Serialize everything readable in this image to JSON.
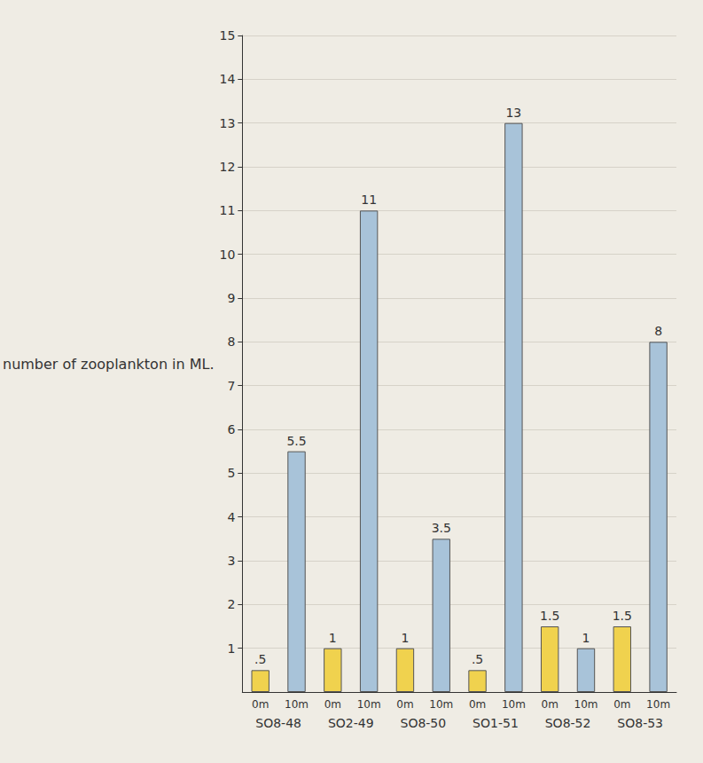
{
  "chart_data": {
    "type": "bar",
    "y_label": "number of zooplankton in ML.",
    "categories": [
      "SO8-48",
      "SO2-49",
      "SO8-50",
      "SO1-51",
      "SO8-52",
      "SO8-53"
    ],
    "series": [
      {
        "name": "0m",
        "color": "#f0d24e",
        "values": [
          0.5,
          1,
          1,
          0.5,
          1.5,
          1.5
        ],
        "value_labels": [
          ".5",
          "1",
          "1",
          ".5",
          "1.5",
          "1.5"
        ]
      },
      {
        "name": "10m",
        "color": "#a8c3d9",
        "values": [
          5.5,
          11,
          3.5,
          13,
          1,
          8
        ],
        "value_labels": [
          "5.5",
          "11",
          "3.5",
          "13",
          "1",
          "8"
        ]
      }
    ],
    "ylim": [
      0,
      15
    ],
    "yticks": [
      1,
      2,
      3,
      4,
      5,
      6,
      7,
      8,
      9,
      10,
      11,
      12,
      13,
      14,
      15
    ],
    "grid": true,
    "data_labels": true
  }
}
